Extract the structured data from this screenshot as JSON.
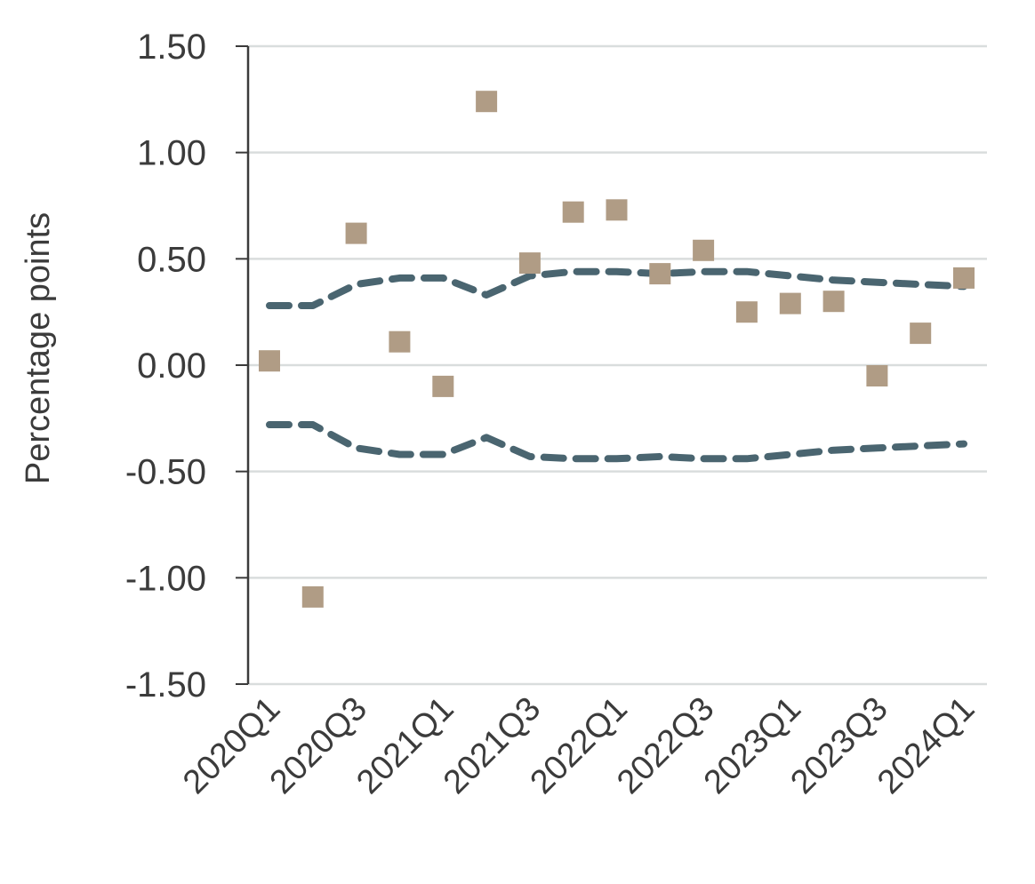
{
  "chart_data": {
    "type": "scatter",
    "title": "",
    "xlabel": "",
    "ylabel": "Percentage points",
    "ylim": [
      -1.5,
      1.5
    ],
    "yticks": [
      "1.50",
      "1.00",
      "0.50",
      "0.00",
      "-0.50",
      "-1.00",
      "-1.50"
    ],
    "ytick_values": [
      1.5,
      1.0,
      0.5,
      0.0,
      -0.5,
      -1.0,
      -1.5
    ],
    "x": [
      "2020Q1",
      "2020Q2",
      "2020Q3",
      "2020Q4",
      "2021Q1",
      "2021Q2",
      "2021Q3",
      "2021Q4",
      "2022Q1",
      "2022Q2",
      "2022Q3",
      "2022Q4",
      "2023Q1",
      "2023Q2",
      "2023Q3",
      "2023Q4",
      "2024Q1"
    ],
    "xtick_labels": [
      "2020Q1",
      "2020Q3",
      "2021Q1",
      "2021Q3",
      "2022Q1",
      "2022Q3",
      "2023Q1",
      "2023Q3",
      "2024Q1"
    ],
    "grid": true,
    "series": [
      {
        "kind": "points",
        "values": [
          0.02,
          -1.09,
          0.62,
          0.11,
          -0.1,
          1.24,
          0.48,
          0.72,
          0.73,
          0.43,
          0.54,
          0.25,
          0.29,
          0.3,
          -0.05,
          0.15,
          0.41
        ],
        "color": "#b09c85"
      },
      {
        "kind": "upper-band",
        "values": [
          0.28,
          0.28,
          0.38,
          0.41,
          0.41,
          0.33,
          0.42,
          0.44,
          0.44,
          0.43,
          0.44,
          0.44,
          0.42,
          0.4,
          0.39,
          0.38,
          0.37
        ],
        "color": "#4a6570"
      },
      {
        "kind": "lower-band",
        "values": [
          -0.28,
          -0.28,
          -0.39,
          -0.42,
          -0.42,
          -0.34,
          -0.43,
          -0.44,
          -0.44,
          -0.43,
          -0.44,
          -0.44,
          -0.42,
          -0.4,
          -0.39,
          -0.38,
          -0.37
        ],
        "color": "#4a6570"
      }
    ],
    "colors": {
      "grid": "#d9dddd",
      "axis": "#3b3b3b"
    }
  }
}
